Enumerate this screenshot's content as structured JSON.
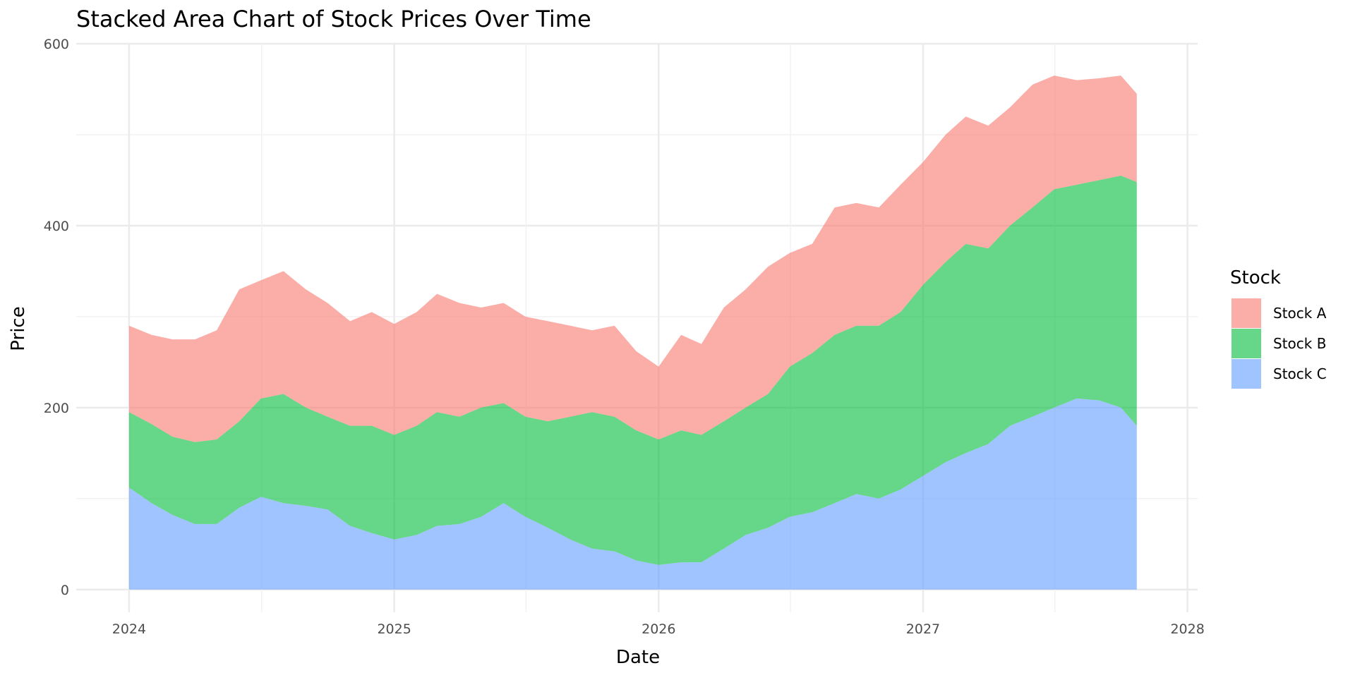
{
  "chart_data": {
    "type": "area",
    "stacked": true,
    "title": "Stacked Area Chart of Stock Prices Over Time",
    "xlabel": "Date",
    "ylabel": "Price",
    "xlim": [
      "2023-10-20",
      "2028-01-15"
    ],
    "ylim": [
      -25,
      600
    ],
    "x_ticks": [
      "2024",
      "2025",
      "2026",
      "2027",
      "2028"
    ],
    "y_ticks": [
      0,
      200,
      400,
      600
    ],
    "grid": true,
    "legend": {
      "title": "Stock",
      "position": "right"
    },
    "x": [
      "2024-01-01",
      "2024-02-01",
      "2024-03-01",
      "2024-04-01",
      "2024-05-01",
      "2024-06-01",
      "2024-07-01",
      "2024-08-01",
      "2024-09-01",
      "2024-10-01",
      "2024-11-01",
      "2024-12-01",
      "2025-01-01",
      "2025-02-01",
      "2025-03-01",
      "2025-04-01",
      "2025-05-01",
      "2025-06-01",
      "2025-07-01",
      "2025-08-01",
      "2025-09-01",
      "2025-10-01",
      "2025-11-01",
      "2025-12-01",
      "2026-01-01",
      "2026-02-01",
      "2026-03-01",
      "2026-04-01",
      "2026-05-01",
      "2026-06-01",
      "2026-07-01",
      "2026-08-01",
      "2026-09-01",
      "2026-10-01",
      "2026-11-01",
      "2026-12-01",
      "2027-01-01",
      "2027-02-01",
      "2027-03-01",
      "2027-04-01",
      "2027-05-01",
      "2027-06-01",
      "2027-07-01",
      "2027-08-01",
      "2027-09-01",
      "2027-10-01",
      "2027-10-23"
    ],
    "series": [
      {
        "name": "Stock A",
        "color": "#F8766D",
        "values": [
          95,
          98,
          107,
          113,
          120,
          145,
          130,
          135,
          130,
          125,
          115,
          125,
          122,
          125,
          130,
          125,
          110,
          110,
          110,
          110,
          100,
          90,
          100,
          87,
          80,
          105,
          100,
          125,
          130,
          140,
          125,
          120,
          140,
          135,
          130,
          140,
          135,
          140,
          140,
          135,
          130,
          135,
          125,
          115,
          112,
          110,
          97
        ]
      },
      {
        "name": "Stock B",
        "color": "#00BA38",
        "values": [
          83,
          87,
          86,
          90,
          93,
          95,
          108,
          120,
          108,
          102,
          110,
          118,
          115,
          120,
          125,
          118,
          120,
          110,
          110,
          117,
          135,
          150,
          148,
          143,
          138,
          145,
          140,
          140,
          140,
          147,
          165,
          175,
          185,
          185,
          190,
          195,
          210,
          220,
          230,
          215,
          220,
          230,
          240,
          235,
          242,
          255,
          268
        ]
      },
      {
        "name": "Stock C",
        "color": "#619CFF",
        "values": [
          112,
          95,
          82,
          72,
          72,
          90,
          102,
          95,
          92,
          88,
          70,
          62,
          55,
          60,
          70,
          72,
          80,
          95,
          80,
          68,
          55,
          45,
          42,
          32,
          27,
          30,
          30,
          45,
          60,
          68,
          80,
          85,
          95,
          105,
          100,
          110,
          125,
          140,
          150,
          160,
          180,
          190,
          200,
          210,
          208,
          200,
          180
        ]
      }
    ]
  }
}
